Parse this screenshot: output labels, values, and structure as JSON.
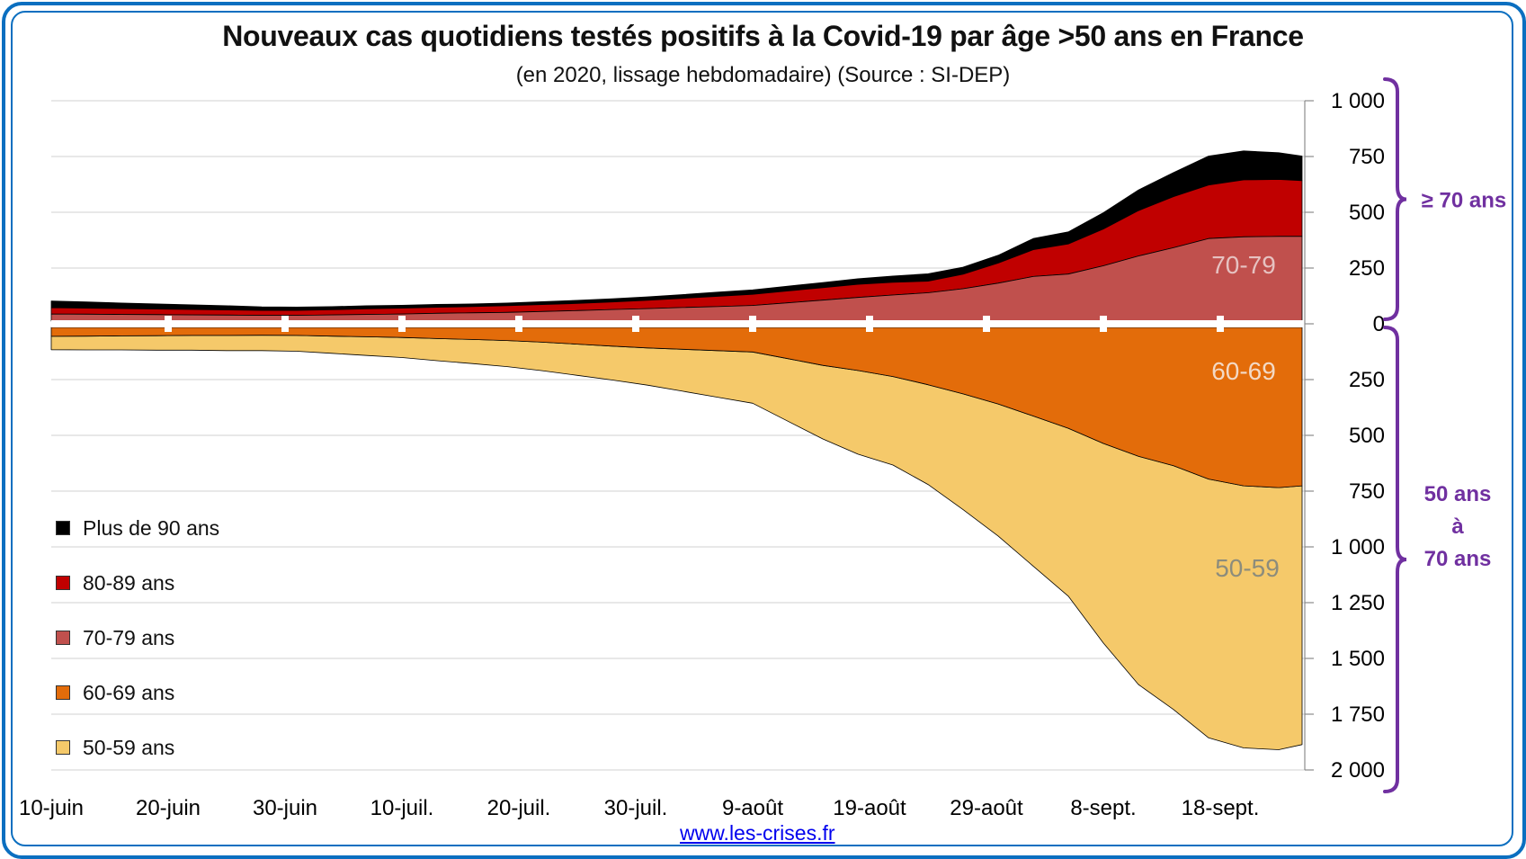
{
  "title": "Nouveaux cas quotidiens testés positifs à la Covid-19 par âge >50 ans en France",
  "subtitle": "(en 2020, lissage hebdomadaire) (Source : SI-DEP)",
  "source_link": "www.les-crises.fr",
  "chart_data": {
    "type": "area",
    "title": "Nouveaux cas quotidiens testés positifs à la Covid-19 par âge >50 ans en France",
    "subtitle": "(en 2020, lissage hebdomadaire) (Source : SI-DEP)",
    "xlabel": "",
    "ylabel": "",
    "start_date": "10-juin",
    "x_unit": "days since 10-juin",
    "x": [
      0,
      3,
      6,
      9,
      12,
      15,
      18,
      21,
      24,
      27,
      30,
      33,
      36,
      39,
      42,
      45,
      48,
      51,
      54,
      57,
      60,
      63,
      66,
      69,
      72,
      75,
      78,
      81,
      84,
      87,
      90,
      93,
      96,
      99,
      102,
      105,
      107
    ],
    "x_ticks": [
      {
        "day": 0,
        "label": "10-juin"
      },
      {
        "day": 10,
        "label": "20-juin"
      },
      {
        "day": 20,
        "label": "30-juin"
      },
      {
        "day": 30,
        "label": "10-juil."
      },
      {
        "day": 40,
        "label": "20-juil."
      },
      {
        "day": 50,
        "label": "30-juil."
      },
      {
        "day": 60,
        "label": "9-août"
      },
      {
        "day": 70,
        "label": "19-août"
      },
      {
        "day": 80,
        "label": "29-août"
      },
      {
        "day": 90,
        "label": "8-sept."
      },
      {
        "day": 100,
        "label": "18-sept."
      }
    ],
    "y_upper": {
      "range": [
        0,
        1000
      ],
      "ticks": [
        {
          "value": 0,
          "label": "0"
        },
        {
          "value": 250,
          "label": "250"
        },
        {
          "value": 500,
          "label": "500"
        },
        {
          "value": 750,
          "label": "750"
        },
        {
          "value": 1000,
          "label": "1 000"
        }
      ]
    },
    "y_lower": {
      "range": [
        0,
        2000
      ],
      "ticks": [
        {
          "value": 250,
          "label": "250"
        },
        {
          "value": 500,
          "label": "500"
        },
        {
          "value": 750,
          "label": "750"
        },
        {
          "value": 1000,
          "label": "1 000"
        },
        {
          "value": 1250,
          "label": "1 250"
        },
        {
          "value": 1500,
          "label": "1 500"
        },
        {
          "value": 1750,
          "label": "1 750"
        },
        {
          "value": 2000,
          "label": "2 000"
        }
      ]
    },
    "grid": true,
    "legend_position": "left",
    "stacking": "upper stack above zero (70-79, 80-89, 90+), lower stack below zero (60-69, 50-59)",
    "series": [
      {
        "name": "Plus de 90 ans",
        "stack": "upper",
        "color": "#000000",
        "values": [
          30,
          28,
          25,
          23,
          21,
          19,
          16,
          15,
          14,
          14,
          13,
          13,
          12,
          12,
          13,
          14,
          14,
          16,
          17,
          19,
          20,
          22,
          23,
          25,
          28,
          33,
          32,
          35,
          50,
          54,
          73,
          93,
          108,
          130,
          130,
          120,
          110
        ]
      },
      {
        "name": "80-89 ans",
        "stack": "upper",
        "color": "#c00000",
        "values": [
          28,
          27,
          26,
          25,
          24,
          23,
          22,
          22,
          23,
          25,
          26,
          27,
          28,
          30,
          31,
          32,
          34,
          37,
          41,
          46,
          50,
          53,
          56,
          59,
          57,
          52,
          65,
          90,
          120,
          135,
          165,
          203,
          229,
          240,
          255,
          255,
          250
        ]
      },
      {
        "name": "70-79 ans",
        "stack": "upper",
        "color": "#c0504d",
        "area_label": "70-79",
        "values": [
          32,
          31,
          30,
          29,
          28,
          27,
          26,
          26,
          28,
          30,
          32,
          35,
          37,
          39,
          43,
          47,
          52,
          56,
          61,
          65,
          70,
          82,
          94,
          106,
          117,
          127,
          145,
          170,
          200,
          211,
          248,
          292,
          329,
          370,
          378,
          380,
          380
        ]
      },
      {
        "name": "60-69 ans",
        "stack": "lower",
        "color": "#e36c0a",
        "area_label": "60-69",
        "values": [
          40,
          39,
          38,
          37,
          36,
          36,
          35,
          36,
          39,
          42,
          45,
          50,
          54,
          59,
          66,
          75,
          84,
          92,
          98,
          104,
          110,
          140,
          170,
          193,
          220,
          257,
          298,
          343,
          397,
          452,
          520,
          578,
          620,
          680,
          710,
          718,
          710
        ]
      },
      {
        "name": "50-59 ans",
        "stack": "lower",
        "color": "#f5c96a",
        "area_label": "50-59",
        "values": [
          60,
          62,
          63,
          65,
          66,
          68,
          69,
          71,
          77,
          84,
          90,
          99,
          108,
          117,
          128,
          140,
          152,
          167,
          188,
          209,
          230,
          280,
          330,
          375,
          397,
          447,
          519,
          592,
          673,
          753,
          895,
          1023,
          1093,
          1160,
          1175,
          1175,
          1160
        ]
      }
    ],
    "annotations": [
      {
        "text": "≥ 70 ans",
        "brace": "upper",
        "color": "#7030a0"
      },
      {
        "text": "50 ans à 70 ans",
        "lines": [
          "50 ans",
          "à",
          "70 ans"
        ],
        "brace": "lower",
        "color": "#7030a0"
      }
    ]
  },
  "legend": {
    "items": [
      {
        "label": "Plus de 90 ans",
        "color": "#000000"
      },
      {
        "label": "80-89 ans",
        "color": "#c00000"
      },
      {
        "label": "70-79 ans",
        "color": "#c0504d"
      },
      {
        "label": "60-69 ans",
        "color": "#e36c0a"
      },
      {
        "label": "50-59 ans",
        "color": "#f5c96a"
      }
    ]
  },
  "brace_labels": {
    "upper": "≥ 70 ans",
    "lower_lines": [
      "50 ans",
      "à",
      "70 ans"
    ]
  }
}
